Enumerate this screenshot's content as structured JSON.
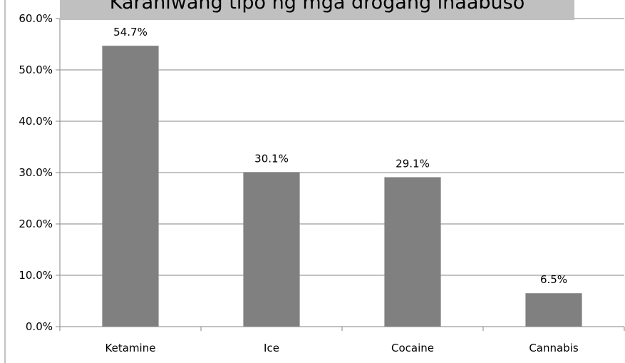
{
  "chart_data": {
    "type": "bar",
    "title": "Karaniwang tipo ng mga drogang inaabuso",
    "categories": [
      "Ketamine",
      "Ice",
      "Cocaine",
      "Cannabis"
    ],
    "values": [
      54.7,
      30.1,
      29.1,
      6.5
    ],
    "data_labels": [
      "54.7%",
      "30.1%",
      "29.1%",
      "6.5%"
    ],
    "y_ticks": [
      0,
      10,
      20,
      30,
      40,
      50,
      60
    ],
    "y_tick_labels": [
      "0.0%",
      "10.0%",
      "20.0%",
      "30.0%",
      "40.0%",
      "50.0%",
      "60.0%"
    ],
    "ylim": [
      0,
      60
    ],
    "xlabel": "",
    "ylabel": "",
    "grid": true,
    "legend": "none",
    "colors": {
      "bar": "#808080",
      "grid": "#868686",
      "axis": "#868686",
      "title_box": "#c0c0c0"
    }
  }
}
